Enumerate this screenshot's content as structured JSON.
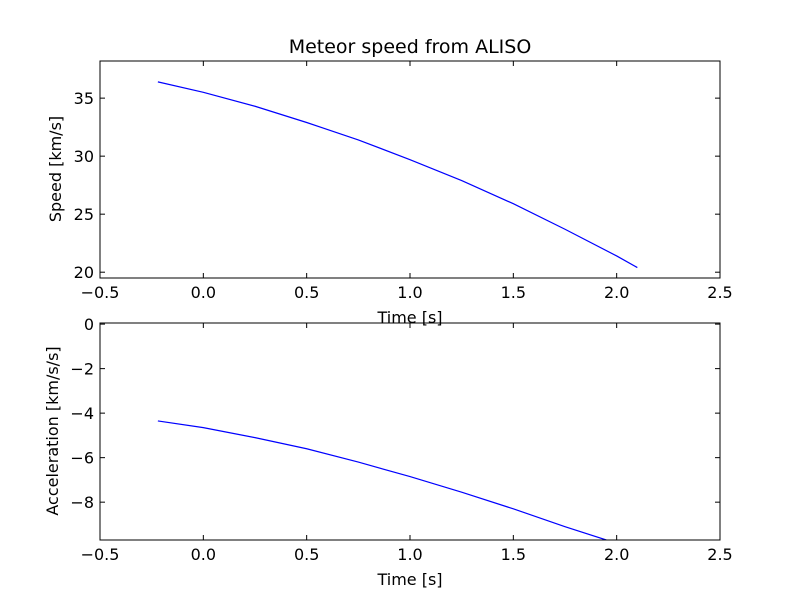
{
  "chart_data": [
    {
      "type": "line",
      "title": "Meteor speed from  ALISO",
      "xlabel": "Time [s]",
      "ylabel": "Speed [km/s]",
      "xlim": [
        -0.5,
        2.5
      ],
      "ylim": [
        19.5,
        38.2
      ],
      "xticks": [
        -0.5,
        0.0,
        0.5,
        1.0,
        1.5,
        2.0,
        2.5
      ],
      "xtick_labels": [
        "−0.5",
        "0.0",
        "0.5",
        "1.0",
        "1.5",
        "2.0",
        "2.5"
      ],
      "yticks": [
        20,
        25,
        30,
        35
      ],
      "ytick_labels": [
        "20",
        "25",
        "30",
        "35"
      ],
      "grid": false,
      "line_color": "#0000ff",
      "series": [
        {
          "x": [
            -0.22,
            0.0,
            0.25,
            0.5,
            0.75,
            1.0,
            1.25,
            1.5,
            1.75,
            2.0,
            2.1
          ],
          "values": [
            36.4,
            35.5,
            34.3,
            32.9,
            31.4,
            29.7,
            27.9,
            25.9,
            23.7,
            21.4,
            20.4
          ]
        }
      ]
    },
    {
      "type": "line",
      "title": "",
      "xlabel": "Time [s]",
      "ylabel": "Acceleration [km/s/s]",
      "xlim": [
        -0.5,
        2.5
      ],
      "ylim": [
        -9.7,
        0.05
      ],
      "xticks": [
        -0.5,
        0.0,
        0.5,
        1.0,
        1.5,
        2.0,
        2.5
      ],
      "xtick_labels": [
        "−0.5",
        "0.0",
        "0.5",
        "1.0",
        "1.5",
        "2.0",
        "2.5"
      ],
      "yticks": [
        0,
        -2,
        -4,
        -6,
        -8
      ],
      "ytick_labels": [
        "0",
        "−2",
        "−4",
        "−6",
        "−8"
      ],
      "grid": false,
      "line_color": "#0000ff",
      "series": [
        {
          "x": [
            -0.22,
            0.0,
            0.25,
            0.5,
            0.75,
            1.0,
            1.25,
            1.5,
            1.75,
            1.95
          ],
          "values": [
            -4.35,
            -4.65,
            -5.1,
            -5.6,
            -6.2,
            -6.85,
            -7.55,
            -8.3,
            -9.1,
            -9.7
          ]
        }
      ]
    }
  ]
}
